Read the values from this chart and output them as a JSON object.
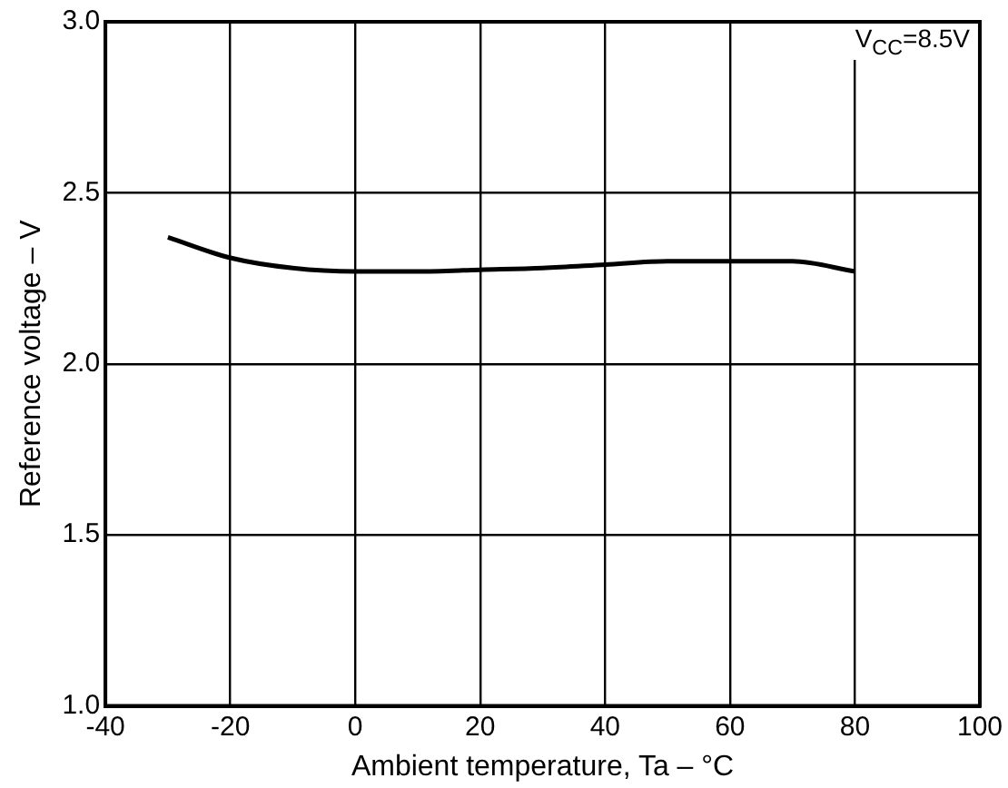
{
  "chart_data": {
    "type": "line",
    "xlabel": "Ambient temperature, Ta – °C",
    "ylabel": "Reference voltage – V",
    "x": [
      -30,
      -20,
      -10,
      0,
      10,
      20,
      30,
      40,
      50,
      60,
      70,
      80
    ],
    "series": [
      {
        "color": "#000000",
        "values": [
          2.37,
          2.31,
          2.28,
          2.27,
          2.27,
          2.275,
          2.28,
          2.29,
          2.3,
          2.3,
          2.3,
          2.27
        ]
      }
    ],
    "xlim": [
      -40,
      100
    ],
    "xticks": [
      -40,
      -20,
      0,
      20,
      40,
      60,
      80,
      100
    ],
    "ylim": [
      1.0,
      3.0
    ],
    "yticks": [
      {
        "value": 1.0,
        "label": "1.0"
      },
      {
        "value": 1.5,
        "label": "1.5"
      },
      {
        "value": 2.0,
        "label": "2.0"
      },
      {
        "value": 2.5,
        "label": "2.5"
      },
      {
        "value": 3.0,
        "label": "3.0"
      }
    ],
    "grid": true,
    "legend": false,
    "marker": "none",
    "line_style": "solid",
    "annotations": [
      {
        "text": "V$_{CC}$=8.5V"
      }
    ]
  }
}
